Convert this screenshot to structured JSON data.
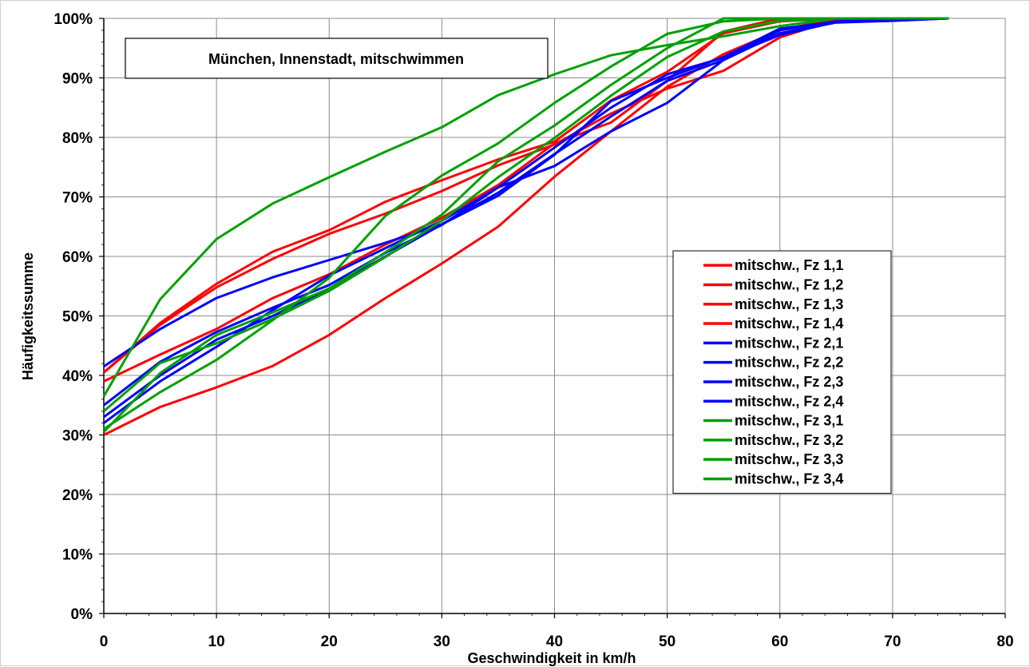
{
  "chart_data": {
    "type": "line",
    "title": "München, Innenstadt, mitschwimmen",
    "xlabel": "Geschwindigkeit in km/h",
    "ylabel": "Häufigkeitssumme",
    "xlim": [
      0,
      80
    ],
    "ylim": [
      0,
      100
    ],
    "x_ticks": [
      "0",
      "10",
      "20",
      "30",
      "40",
      "50",
      "60",
      "70",
      "80"
    ],
    "y_ticks": [
      "0%",
      "10%",
      "20%",
      "30%",
      "40%",
      "50%",
      "60%",
      "70%",
      "80%",
      "90%",
      "100%"
    ],
    "grid": true,
    "legend_position": "right",
    "colors": {
      "Fz1": "#ff0000",
      "Fz2": "#0000ff",
      "Fz3": "#00a000"
    },
    "x": [
      0,
      5,
      10,
      15,
      20,
      25,
      30,
      35,
      40,
      45,
      50,
      55,
      60,
      65,
      70,
      75
    ],
    "series": [
      {
        "name": "mitschw., Fz 1,1",
        "color": "#ff0000",
        "values": [
          30,
          34.7,
          38,
          41.6,
          46.8,
          53,
          58.8,
          65,
          73.4,
          81,
          88.5,
          94,
          98,
          100,
          100,
          100
        ]
      },
      {
        "name": "mitschw., Fz 1,2",
        "color": "#ff0000",
        "values": [
          39,
          43.5,
          47.8,
          53,
          57,
          62,
          66.5,
          72,
          79,
          82.5,
          89.5,
          97.8,
          100,
          100,
          100,
          100
        ]
      },
      {
        "name": "mitschw., Fz 1,3",
        "color": "#ff0000",
        "values": [
          40.5,
          48.8,
          55.4,
          60.8,
          64.4,
          69.2,
          72.8,
          76.3,
          79.3,
          86.2,
          91,
          97.5,
          99.5,
          100,
          100,
          100
        ]
      },
      {
        "name": "mitschw., Fz 1,4",
        "color": "#ff0000",
        "values": [
          40.5,
          48.5,
          54.8,
          59.6,
          63.8,
          67.2,
          71,
          75.3,
          78.8,
          84,
          88.2,
          91.2,
          96.8,
          99.8,
          100,
          100
        ]
      },
      {
        "name": "mitschw., Fz 2,1",
        "color": "#0000ff",
        "values": [
          41.5,
          47.8,
          53,
          56.5,
          59.4,
          62.3,
          65.4,
          70.2,
          77.1,
          86.1,
          90,
          93.5,
          98.3,
          99.4,
          99.6,
          100
        ]
      },
      {
        "name": "mitschw., Fz 2,2",
        "color": "#0000ff",
        "values": [
          35,
          42.3,
          47.3,
          51.4,
          55.2,
          60.6,
          65.3,
          71.6,
          75.2,
          81,
          85.8,
          93,
          98,
          99.5,
          99.7,
          100
        ]
      },
      {
        "name": "mitschw., Fz 2,3",
        "color": "#0000ff",
        "values": [
          33,
          40,
          46,
          50,
          54.6,
          60,
          65.4,
          70.7,
          77.2,
          83.5,
          89.5,
          93,
          97.5,
          99.3,
          99.6,
          100
        ]
      },
      {
        "name": "mitschw., Fz 2,4",
        "color": "#0000ff",
        "values": [
          32,
          39,
          44.8,
          51,
          56.8,
          61.4,
          66,
          71.6,
          78.3,
          85,
          90.6,
          93.4,
          97.2,
          99.4,
          99.7,
          100
        ]
      },
      {
        "name": "mitschw., Fz 3,1",
        "color": "#00a000",
        "values": [
          36.5,
          52.8,
          62.9,
          68.9,
          73.3,
          77.6,
          81.7,
          87.1,
          90.6,
          93.8,
          95.5,
          97,
          98.7,
          100,
          100,
          100
        ]
      },
      {
        "name": "mitschw., Fz 3,2",
        "color": "#00a000",
        "values": [
          31,
          37.2,
          42.6,
          49.3,
          56.4,
          66.8,
          73.6,
          79,
          85.8,
          91.9,
          97.4,
          99.5,
          100,
          100,
          100,
          100
        ]
      },
      {
        "name": "mitschw., Fz 3,3",
        "color": "#00a000",
        "values": [
          34,
          42.1,
          45.4,
          49.5,
          54.2,
          59.9,
          66,
          73.3,
          79.9,
          87,
          93.5,
          97.8,
          99.6,
          100,
          100,
          100
        ]
      },
      {
        "name": "mitschw., Fz 3,4",
        "color": "#00a000",
        "values": [
          30.5,
          40.4,
          46.8,
          50.6,
          54.6,
          60.7,
          67,
          76,
          82,
          88.8,
          95,
          100,
          100,
          100,
          100,
          100
        ]
      }
    ]
  }
}
